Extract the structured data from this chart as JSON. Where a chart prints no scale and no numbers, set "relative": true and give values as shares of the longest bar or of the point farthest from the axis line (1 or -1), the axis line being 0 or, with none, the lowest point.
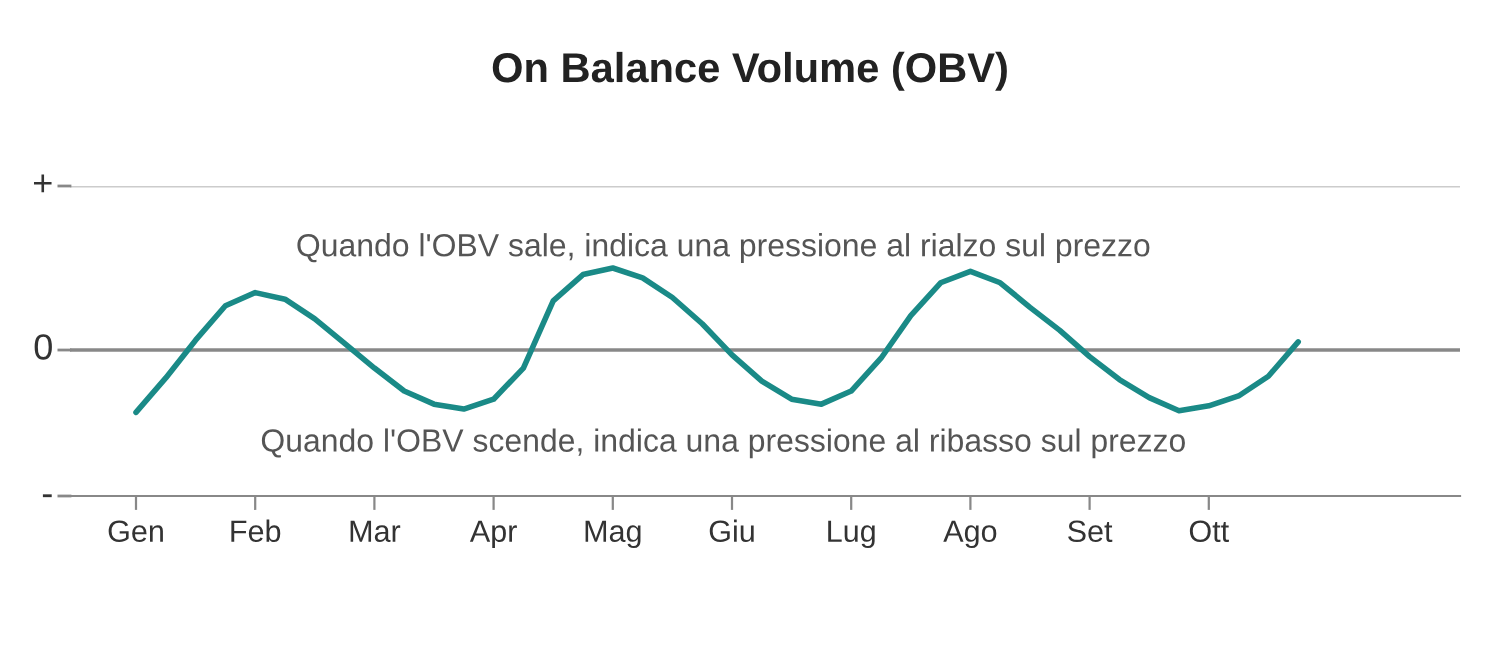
{
  "chart_data": {
    "type": "line",
    "title": "On Balance Volume (OBV)",
    "relative": true,
    "annotations": [
      "Quando l'OBV sale, indica una pressione al rialzo sul prezzo",
      "Quando l'OBV scende, indica una pressione al ribasso sul prezzo",
      "+",
      "0",
      "-"
    ],
    "categories": [
      "Gen",
      null,
      null,
      null,
      "Feb",
      null,
      null,
      null,
      "Mar",
      null,
      null,
      null,
      "Apr",
      null,
      null,
      null,
      "Mag",
      null,
      null,
      null,
      "Giu",
      null,
      null,
      null,
      "Lug",
      null,
      null,
      null,
      "Ago",
      null,
      null,
      null,
      "Set",
      null,
      null,
      null,
      "Ott",
      null,
      null,
      null
    ],
    "marker": "none",
    "line_style": "solid",
    "series": [
      {
        "color": "#1a8a87",
        "values": [
          -0.76,
          -0.34,
          0.12,
          0.54,
          0.7,
          0.62,
          0.38,
          0.08,
          -0.22,
          -0.5,
          -0.66,
          -0.72,
          -0.6,
          -0.22,
          0.6,
          0.92,
          1.0,
          0.88,
          0.64,
          0.32,
          -0.06,
          -0.38,
          -0.6,
          -0.66,
          -0.5,
          -0.1,
          0.42,
          0.82,
          0.96,
          0.82,
          0.52,
          0.24,
          -0.08,
          -0.36,
          -0.58,
          -0.74,
          -0.68,
          -0.56,
          -0.32,
          0.1
        ]
      }
    ]
  }
}
